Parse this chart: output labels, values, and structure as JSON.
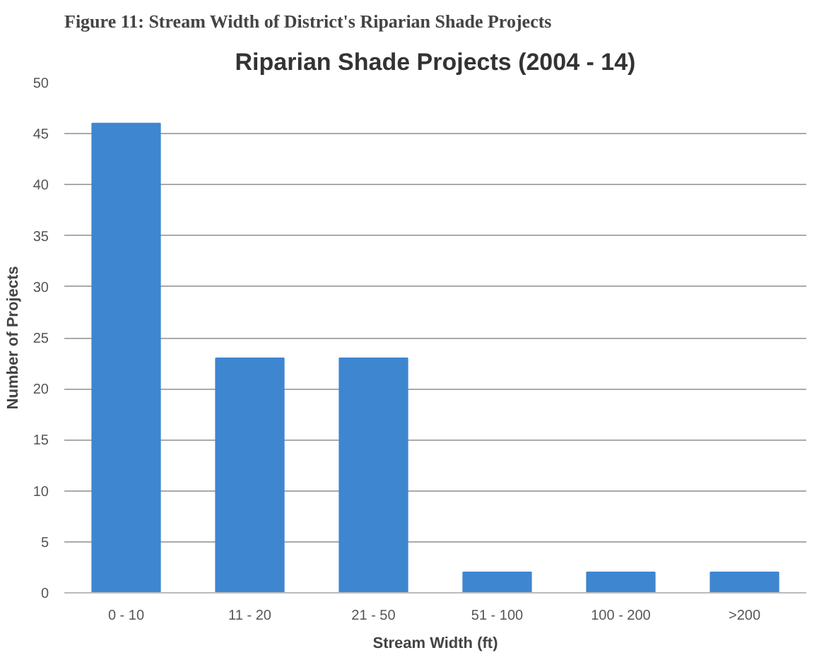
{
  "chart_data": {
    "type": "bar",
    "title": "Riparian Shade Projects (2004 - 14)",
    "xlabel": "Stream Width (ft)",
    "ylabel": "Number of Projects",
    "annotations": [
      "Figure 11: Stream Width of District's Riparian Shade Projects"
    ],
    "categories": [
      "0 - 10",
      "11 - 20",
      "21 - 50",
      "51 - 100",
      "100 - 200",
      ">200"
    ],
    "values": [
      46,
      23,
      23,
      2,
      2,
      2
    ],
    "color": "#3f86d0",
    "ylim": [
      0,
      50
    ],
    "yticks": [
      0,
      5,
      10,
      15,
      20,
      25,
      30,
      35,
      40,
      45,
      50
    ],
    "grid": "y"
  }
}
